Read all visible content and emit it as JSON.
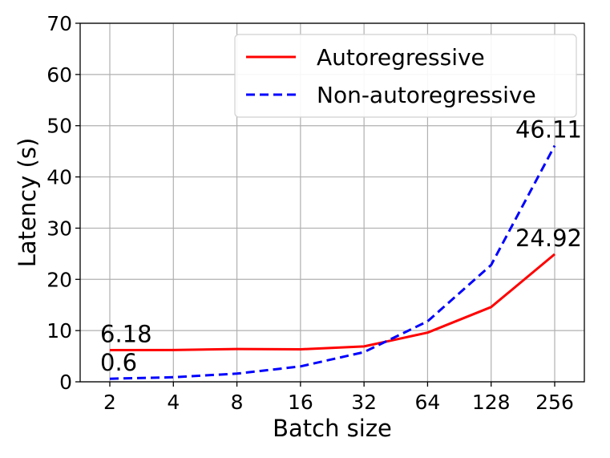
{
  "chart_data": {
    "type": "line",
    "title": "",
    "xlabel": "Batch size",
    "ylabel": "Latency (s)",
    "categories": [
      "2",
      "4",
      "8",
      "16",
      "32",
      "64",
      "128",
      "256"
    ],
    "ylim": [
      0,
      70
    ],
    "yticks": [
      "0",
      "10",
      "20",
      "30",
      "40",
      "50",
      "60",
      "70"
    ],
    "grid": true,
    "legend_position": "top-right",
    "series": [
      {
        "name": "Autoregressive",
        "color": "#ff0000",
        "style": "solid",
        "values": [
          6.18,
          6.2,
          6.4,
          6.35,
          6.9,
          9.6,
          14.6,
          24.92
        ]
      },
      {
        "name": "Non-autoregressive",
        "color": "#0000ff",
        "style": "dashed",
        "values": [
          0.6,
          0.9,
          1.6,
          3.0,
          5.8,
          11.8,
          22.8,
          46.11
        ]
      }
    ],
    "annotations": [
      {
        "text": "6.18",
        "series": 0,
        "index": 0
      },
      {
        "text": "0.6",
        "series": 1,
        "index": 0
      },
      {
        "text": "24.92",
        "series": 0,
        "index": 7
      },
      {
        "text": "46.11",
        "series": 1,
        "index": 7
      }
    ]
  }
}
